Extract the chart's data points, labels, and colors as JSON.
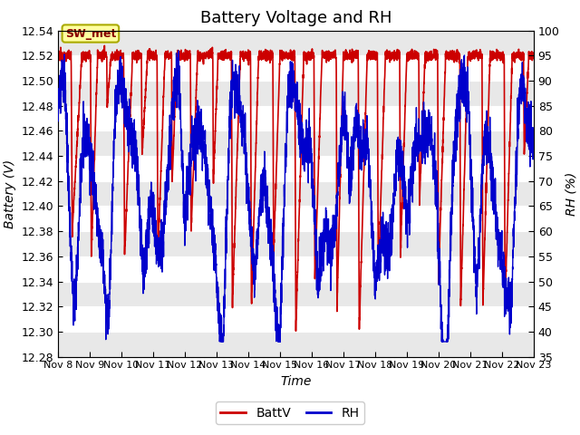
{
  "title": "Battery Voltage and RH",
  "xlabel": "Time",
  "ylabel_left": "Battery (V)",
  "ylabel_right": "RH (%)",
  "xlim": [
    0,
    15
  ],
  "ylim_left": [
    12.28,
    12.54
  ],
  "ylim_right": [
    35,
    100
  ],
  "yticks_left": [
    12.28,
    12.3,
    12.32,
    12.34,
    12.36,
    12.38,
    12.4,
    12.42,
    12.44,
    12.46,
    12.48,
    12.5,
    12.52,
    12.54
  ],
  "yticks_right": [
    35,
    40,
    45,
    50,
    55,
    60,
    65,
    70,
    75,
    80,
    85,
    90,
    95,
    100
  ],
  "xtick_labels": [
    "Nov 8",
    "Nov 9",
    "Nov 10",
    "Nov 11",
    "Nov 12",
    "Nov 13",
    "Nov 14",
    "Nov 15",
    "Nov 16",
    "Nov 17",
    "Nov 18",
    "Nov 19",
    "Nov 20",
    "Nov 21",
    "Nov 22",
    "Nov 23"
  ],
  "batt_color": "#CC0000",
  "rh_color": "#0000CC",
  "legend_label_batt": "BattV",
  "legend_label_rh": "RH",
  "annotation_text": "SW_met",
  "bg_color": "#FFFFFF",
  "stripe_light": "#FFFFFF",
  "stripe_dark": "#E8E8E8",
  "title_fontsize": 13,
  "axis_fontsize": 10,
  "tick_fontsize": 9
}
